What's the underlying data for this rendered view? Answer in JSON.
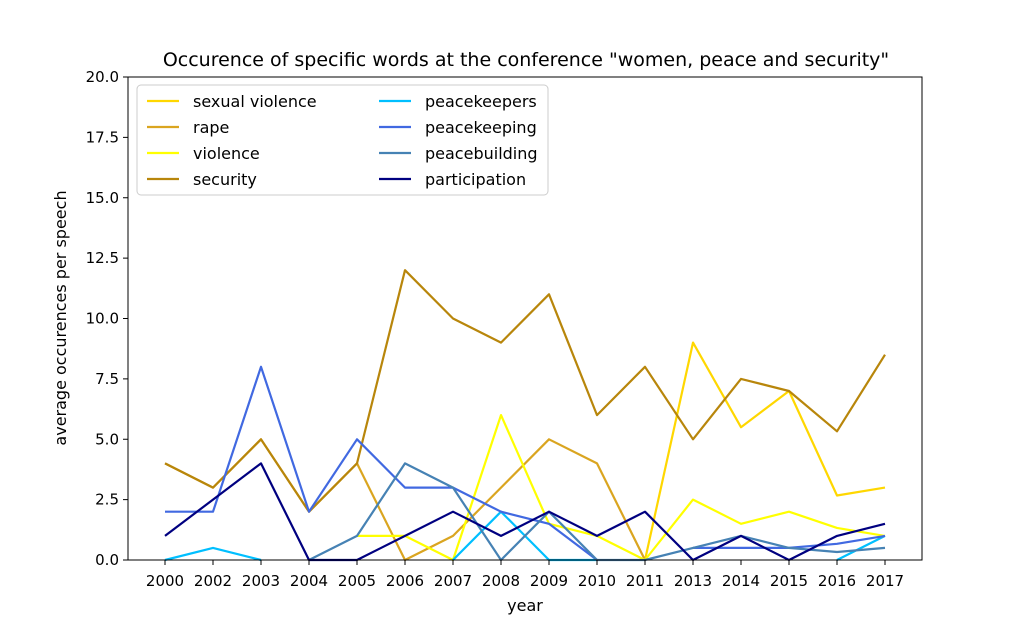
{
  "chart_data": {
    "type": "line",
    "title": "Occurence of specific words at the conference \"women, peace and security\"",
    "xlabel": "year",
    "ylabel": "average occurences per speech",
    "ylim": [
      0,
      20
    ],
    "yticks": [
      "0.0",
      "2.5",
      "5.0",
      "7.5",
      "10.0",
      "12.5",
      "15.0",
      "17.5",
      "20.0"
    ],
    "categories": [
      "2000",
      "2002",
      "2003",
      "2004",
      "2005",
      "2006",
      "2007",
      "2008",
      "2009",
      "2010",
      "2011",
      "2013",
      "2014",
      "2015",
      "2016",
      "2017"
    ],
    "grid": false,
    "legend_position": "top-left",
    "series": [
      {
        "name": "sexual violence",
        "color": "#FFD700",
        "values": [
          null,
          null,
          null,
          null,
          null,
          null,
          null,
          null,
          null,
          null,
          0,
          9,
          5.5,
          7,
          2.67,
          3
        ]
      },
      {
        "name": "rape",
        "color": "#DAA520",
        "values": [
          4,
          3,
          5,
          2,
          4,
          0,
          1,
          3,
          5,
          4,
          0,
          null,
          null,
          null,
          null,
          null
        ]
      },
      {
        "name": "violence",
        "color": "#FFFF00",
        "values": [
          null,
          null,
          null,
          null,
          1,
          1,
          0,
          6,
          1.5,
          1,
          0,
          2.5,
          1.5,
          2,
          1.33,
          1
        ]
      },
      {
        "name": "security",
        "color": "#B8860B",
        "values": [
          4,
          3,
          5,
          2,
          4,
          12,
          10,
          9,
          11,
          6,
          8,
          5,
          7.5,
          7,
          5.33,
          8.5
        ]
      },
      {
        "name": "peacekeepers",
        "color": "#00BFFF",
        "values": [
          0,
          0.5,
          0,
          null,
          null,
          null,
          0,
          2,
          0,
          0,
          null,
          null,
          null,
          null,
          0,
          1
        ]
      },
      {
        "name": "peacekeeping",
        "color": "#4169E1",
        "values": [
          2,
          2,
          8,
          2,
          5,
          3,
          3,
          2,
          1.5,
          0,
          null,
          0.5,
          0.5,
          0.5,
          0.67,
          1
        ]
      },
      {
        "name": "peacebuilding",
        "color": "#4682B4",
        "values": [
          null,
          null,
          null,
          0,
          1,
          4,
          3,
          0,
          2,
          0,
          0,
          0.5,
          1,
          0.5,
          0.33,
          0.5
        ]
      },
      {
        "name": "participation",
        "color": "#000080",
        "values": [
          1,
          2.5,
          4,
          0,
          0,
          1,
          2,
          1,
          2,
          1,
          2,
          0,
          1,
          0,
          1,
          1.5
        ]
      }
    ]
  }
}
